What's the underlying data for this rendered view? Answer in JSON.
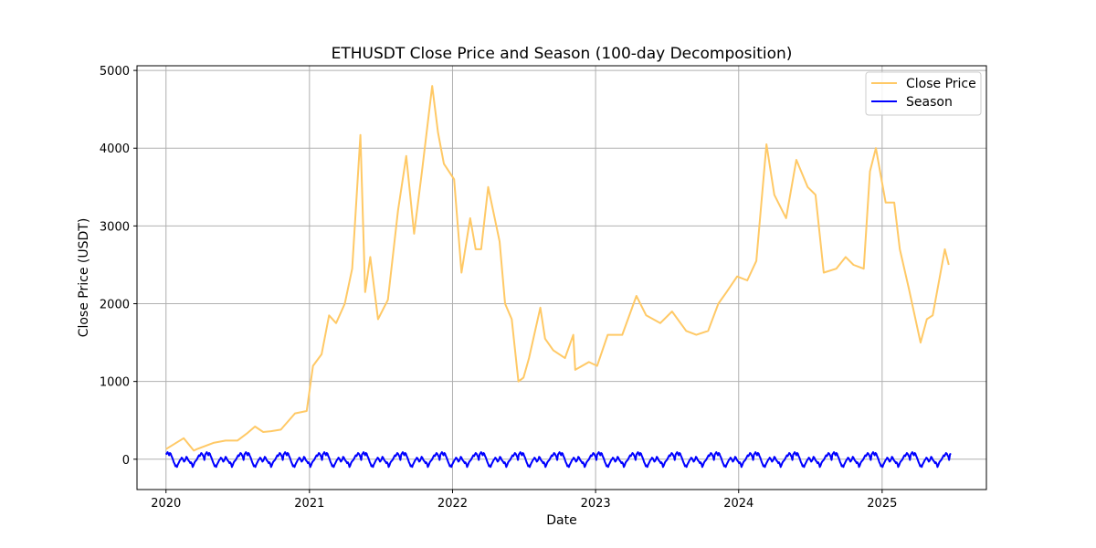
{
  "chart_data": {
    "type": "line",
    "title": "ETHUSDT Close Price and Season (100-day Decomposition)",
    "xlabel": "Date",
    "ylabel": "Close Price (USDT)",
    "x_ticks": [
      "2020",
      "2021",
      "2022",
      "2023",
      "2024",
      "2025"
    ],
    "y_ticks": [
      "0",
      "1000",
      "2000",
      "3000",
      "4000",
      "5000"
    ],
    "xlim": [
      "2019-10-19",
      "2025-09-24"
    ],
    "ylim": [
      -390,
      5060
    ],
    "grid": true,
    "legend": "top-right",
    "colors": {
      "close": "#ffc966",
      "season": "#0000ff",
      "grid": "#b0b0b0"
    },
    "series": [
      {
        "name": "Close Price",
        "x": [
          "2020-01-01",
          "2020-02-15",
          "2020-03-12",
          "2020-03-20",
          "2020-05-01",
          "2020-06-01",
          "2020-07-01",
          "2020-07-25",
          "2020-08-15",
          "2020-09-05",
          "2020-09-25",
          "2020-10-20",
          "2020-11-25",
          "2020-12-25",
          "2021-01-10",
          "2021-02-01",
          "2021-02-20",
          "2021-03-10",
          "2021-04-01",
          "2021-04-20",
          "2021-05-11",
          "2021-05-23",
          "2021-06-05",
          "2021-06-25",
          "2021-07-20",
          "2021-08-15",
          "2021-09-05",
          "2021-09-25",
          "2021-10-15",
          "2021-11-10",
          "2021-11-25",
          "2021-12-10",
          "2022-01-05",
          "2022-01-24",
          "2022-02-15",
          "2022-03-01",
          "2022-03-15",
          "2022-04-02",
          "2022-05-01",
          "2022-05-15",
          "2022-06-01",
          "2022-06-18",
          "2022-07-01",
          "2022-07-15",
          "2022-08-13",
          "2022-08-25",
          "2022-09-15",
          "2022-10-15",
          "2022-11-05",
          "2022-11-10",
          "2022-12-15",
          "2023-01-05",
          "2023-02-01",
          "2023-03-10",
          "2023-04-15",
          "2023-05-10",
          "2023-06-15",
          "2023-07-15",
          "2023-08-20",
          "2023-09-15",
          "2023-10-15",
          "2023-11-10",
          "2023-12-01",
          "2023-12-28",
          "2024-01-23",
          "2024-02-15",
          "2024-03-12",
          "2024-04-01",
          "2024-05-01",
          "2024-05-27",
          "2024-06-25",
          "2024-07-15",
          "2024-08-05",
          "2024-09-06",
          "2024-09-30",
          "2024-10-20",
          "2024-11-15",
          "2024-12-01",
          "2024-12-16",
          "2025-01-10",
          "2025-02-01",
          "2025-02-15",
          "2025-03-10",
          "2025-04-09",
          "2025-04-25",
          "2025-05-10",
          "2025-06-10",
          "2025-06-20"
        ],
        "values": [
          130,
          270,
          110,
          130,
          210,
          240,
          240,
          330,
          420,
          350,
          360,
          380,
          590,
          620,
          1200,
          1350,
          1850,
          1750,
          2000,
          2450,
          4170,
          2150,
          2600,
          1800,
          2050,
          3200,
          3900,
          2900,
          3700,
          4800,
          4200,
          3800,
          3600,
          2400,
          3100,
          2700,
          2700,
          3500,
          2800,
          2000,
          1800,
          1000,
          1050,
          1300,
          1950,
          1550,
          1400,
          1300,
          1600,
          1150,
          1250,
          1200,
          1600,
          1600,
          2100,
          1850,
          1750,
          1900,
          1650,
          1600,
          1650,
          2000,
          2150,
          2350,
          2300,
          2550,
          4050,
          3400,
          3100,
          3850,
          3500,
          3400,
          2400,
          2450,
          2600,
          2500,
          2450,
          3700,
          4000,
          3300,
          3300,
          2700,
          2200,
          1500,
          1800,
          1850,
          2700,
          2500
        ]
      },
      {
        "name": "Season",
        "period_days": 100,
        "phase_start": "2020-01-01",
        "x_start": "2020-01-01",
        "x_end": "2025-06-25",
        "profile": [
          60,
          75,
          90,
          70,
          50,
          80,
          70,
          40,
          20,
          -10,
          -40,
          -60,
          -90,
          -80,
          -100,
          -70,
          -50,
          -30,
          -10,
          0,
          20,
          10,
          -10,
          -30,
          -20,
          0,
          30,
          20,
          -5,
          -20,
          -30,
          -50,
          -40,
          -60,
          -100,
          -80,
          -50,
          -30,
          -20,
          -10,
          10,
          30,
          50,
          40,
          60,
          80,
          70,
          50,
          30,
          -10
        ]
      }
    ]
  }
}
